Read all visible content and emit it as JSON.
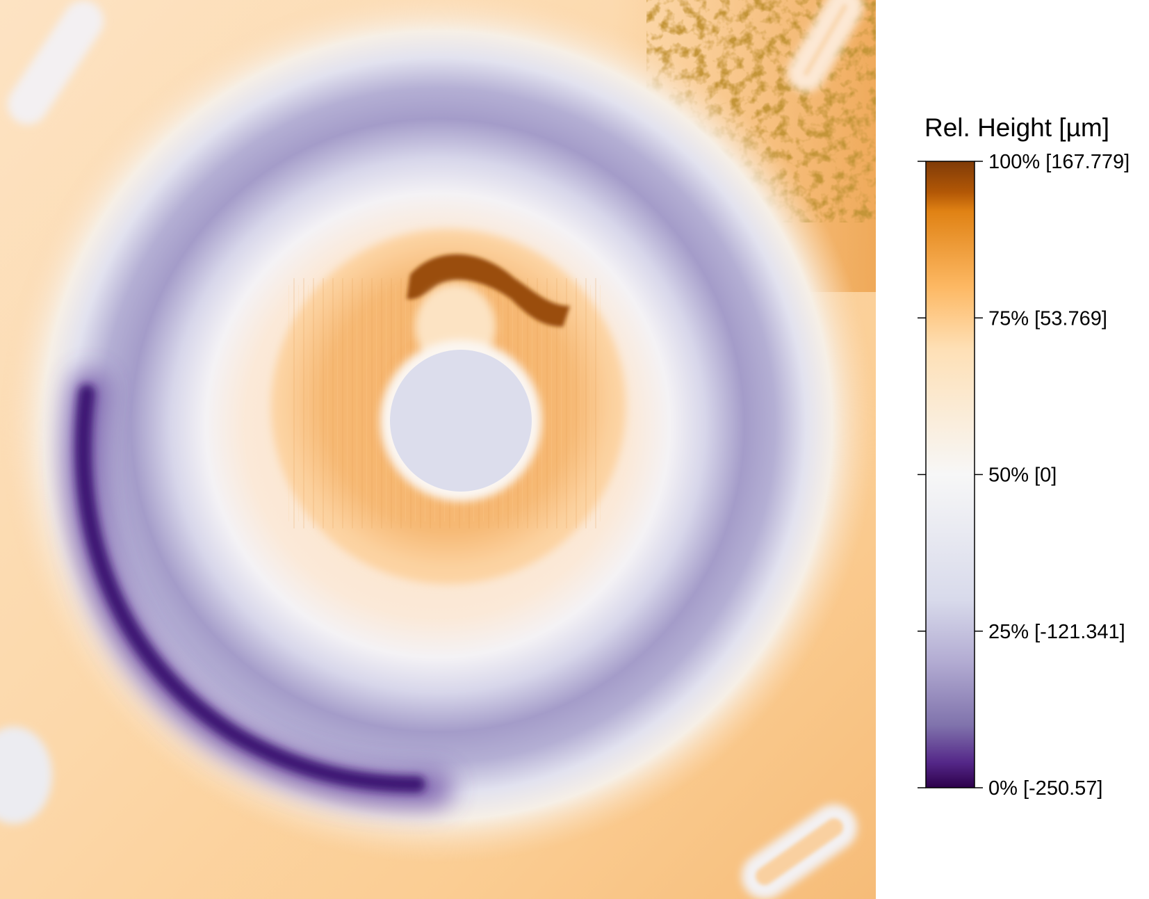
{
  "chart_data": {
    "type": "heatmap",
    "title": "",
    "colorbar": {
      "title": "Rel. Height [µm]",
      "min": -250.57,
      "max": 167.779,
      "ticks": [
        {
          "fraction": 1.0,
          "label": "100% [167.779]"
        },
        {
          "fraction": 0.75,
          "label": "75% [53.769]"
        },
        {
          "fraction": 0.5,
          "label": "50% [0]"
        },
        {
          "fraction": 0.25,
          "label": "25% [-121.341]"
        },
        {
          "fraction": 0.0,
          "label": "0% [-250.57]"
        }
      ],
      "colormap": [
        {
          "fraction": 0.0,
          "color": "#2d004b"
        },
        {
          "fraction": 0.04,
          "color": "#542788"
        },
        {
          "fraction": 0.1,
          "color": "#8073ac"
        },
        {
          "fraction": 0.2,
          "color": "#b2abd2"
        },
        {
          "fraction": 0.3,
          "color": "#d8daeb"
        },
        {
          "fraction": 0.5,
          "color": "#f7f7f7"
        },
        {
          "fraction": 0.7,
          "color": "#fee0b6"
        },
        {
          "fraction": 0.8,
          "color": "#fdb863"
        },
        {
          "fraction": 0.92,
          "color": "#e08214"
        },
        {
          "fraction": 0.95,
          "color": "#b35806"
        },
        {
          "fraction": 1.0,
          "color": "#7f3b08"
        }
      ]
    }
  }
}
